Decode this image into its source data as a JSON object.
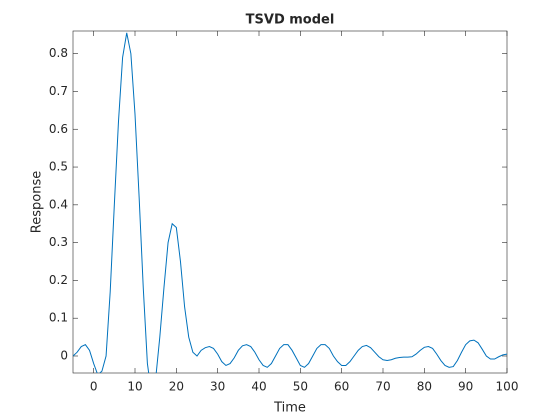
{
  "chart_data": {
    "type": "line",
    "title": "TSVD model",
    "x_label": "Time",
    "y_label": "Response",
    "x": [
      -5,
      -4,
      -3,
      -2,
      -1,
      0,
      1,
      2,
      3,
      4,
      5,
      6,
      7,
      8,
      9,
      10,
      11,
      12,
      13,
      14,
      15,
      16,
      17,
      18,
      19,
      20,
      21,
      22,
      23,
      24,
      25,
      26,
      27,
      28,
      29,
      30,
      31,
      32,
      33,
      34,
      35,
      36,
      37,
      38,
      39,
      40,
      41,
      42,
      43,
      44,
      45,
      46,
      47,
      48,
      49,
      50,
      51,
      52,
      53,
      54,
      55,
      56,
      57,
      58,
      59,
      60,
      61,
      62,
      63,
      64,
      65,
      66,
      67,
      68,
      69,
      70,
      71,
      72,
      73,
      74,
      75,
      76,
      77,
      78,
      79,
      80,
      81,
      82,
      83,
      84,
      85,
      86,
      87,
      88,
      89,
      90,
      91,
      92,
      93,
      94,
      95,
      96,
      97,
      98,
      99,
      100
    ],
    "series": [
      {
        "color": "#0072bd",
        "values": [
          0,
          0.01,
          0.025,
          0.03,
          0.015,
          -0.02,
          -0.05,
          -0.04,
          0.0,
          0.17,
          0.4,
          0.62,
          0.79,
          0.855,
          0.8,
          0.64,
          0.42,
          0.18,
          -0.02,
          -0.1,
          -0.06,
          0.05,
          0.18,
          0.3,
          0.35,
          0.34,
          0.25,
          0.13,
          0.05,
          0.01,
          0.0,
          0.015,
          0.022,
          0.025,
          0.02,
          0.005,
          -0.015,
          -0.025,
          -0.02,
          -0.005,
          0.015,
          0.027,
          0.03,
          0.025,
          0.01,
          -0.01,
          -0.025,
          -0.03,
          -0.02,
          0.0,
          0.02,
          0.03,
          0.03,
          0.015,
          -0.005,
          -0.025,
          -0.03,
          -0.02,
          0.0,
          0.02,
          0.03,
          0.03,
          0.02,
          0.0,
          -0.015,
          -0.025,
          -0.025,
          -0.015,
          0.0,
          0.015,
          0.025,
          0.028,
          0.022,
          0.01,
          -0.002,
          -0.01,
          -0.012,
          -0.01,
          -0.006,
          -0.004,
          -0.003,
          -0.003,
          -0.002,
          0.005,
          0.015,
          0.023,
          0.025,
          0.02,
          0.005,
          -0.012,
          -0.025,
          -0.03,
          -0.028,
          -0.012,
          0.01,
          0.03,
          0.04,
          0.042,
          0.035,
          0.018,
          0.0,
          -0.008,
          -0.008,
          -0.002,
          0.003,
          0.005
        ]
      }
    ],
    "xlim": [
      -5,
      100
    ],
    "xticks": [
      0,
      10,
      20,
      30,
      40,
      50,
      60,
      70,
      80,
      90,
      100
    ],
    "ylim": [
      -0.045,
      0.86
    ],
    "yticks": [
      0,
      0.1,
      0.2,
      0.3,
      0.4,
      0.5,
      0.6,
      0.7,
      0.8
    ],
    "grid": false
  }
}
